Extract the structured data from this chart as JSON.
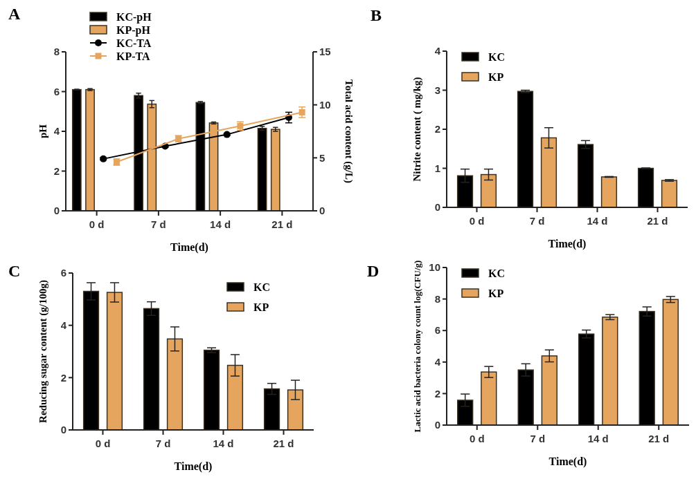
{
  "chart_data": [
    {
      "type": "bar",
      "title": "A",
      "xlabel": "Time(d)",
      "ylabel": "pH",
      "y2label": "Total acid content (g/L)",
      "categories": [
        "0 d",
        "7 d",
        "14 d",
        "21 d"
      ],
      "ylim": [
        0,
        8
      ],
      "yticks": [
        0,
        2,
        4,
        6,
        8
      ],
      "y2lim": [
        0,
        15
      ],
      "y2ticks": [
        0,
        5,
        10,
        15
      ],
      "legend": "top",
      "series": [
        {
          "name": "KC-pH",
          "color": "#000000",
          "values": [
            6.1,
            5.8,
            5.45,
            4.15
          ],
          "errors": [
            0.02,
            0.12,
            0.05,
            0.1
          ]
        },
        {
          "name": "KP-pH",
          "color": "#e6a55e",
          "values": [
            6.1,
            5.37,
            4.42,
            4.1
          ],
          "errors": [
            0.05,
            0.18,
            0.05,
            0.1
          ]
        },
        {
          "name": "KC-TA",
          "type": "line",
          "axis": "y2",
          "marker": "circle",
          "color": "#000000",
          "values": [
            4.9,
            6.1,
            7.2,
            8.8
          ],
          "errors": [
            0.1,
            0.1,
            0.1,
            0.5
          ]
        },
        {
          "name": "KP-TA",
          "type": "line",
          "axis": "y2",
          "marker": "square",
          "color": "#e6a55e",
          "values": [
            4.6,
            6.8,
            8.0,
            9.3
          ],
          "errors": [
            0.3,
            0.3,
            0.4,
            0.5
          ]
        }
      ]
    },
    {
      "type": "bar",
      "title": "B",
      "xlabel": "Time(d)",
      "ylabel": "Nitrite content ( mg/kg)",
      "categories": [
        "0 d",
        "7 d",
        "14 d",
        "21 d"
      ],
      "ylim": [
        0,
        4
      ],
      "yticks": [
        0,
        1,
        2,
        3,
        4
      ],
      "legend": "top left",
      "series": [
        {
          "name": "KC",
          "color": "#000000",
          "values": [
            0.81,
            2.97,
            1.61,
            1.0
          ],
          "errors": [
            0.17,
            0.03,
            0.1,
            0.01
          ]
        },
        {
          "name": "KP",
          "color": "#e6a55e",
          "values": [
            0.84,
            1.78,
            0.78,
            0.69
          ],
          "errors": [
            0.14,
            0.26,
            0.01,
            0.02
          ]
        }
      ]
    },
    {
      "type": "bar",
      "title": "C",
      "xlabel": "Time(d)",
      "ylabel": "Reducing sugar content (g/100g)",
      "categories": [
        "0 d",
        "7 d",
        "14 d",
        "21 d"
      ],
      "ylim": [
        0,
        6
      ],
      "yticks": [
        0,
        2,
        4,
        6
      ],
      "legend": "top right",
      "series": [
        {
          "name": "KC",
          "color": "#000000",
          "values": [
            5.3,
            4.64,
            3.05,
            1.57
          ],
          "errors": [
            0.33,
            0.26,
            0.09,
            0.21
          ]
        },
        {
          "name": "KP",
          "color": "#e6a55e",
          "values": [
            5.26,
            3.48,
            2.47,
            1.53
          ],
          "errors": [
            0.37,
            0.46,
            0.41,
            0.37
          ]
        }
      ]
    },
    {
      "type": "bar",
      "title": "D",
      "xlabel": "Time(d)",
      "ylabel": "Lactic acid bacteria colony count log(CFU/g)",
      "categories": [
        "0 d",
        "7 d",
        "14 d",
        "21 d"
      ],
      "ylim": [
        0,
        10
      ],
      "yticks": [
        0,
        2,
        4,
        6,
        8,
        10
      ],
      "legend": "top left",
      "series": [
        {
          "name": "KC",
          "color": "#000000",
          "values": [
            1.58,
            3.5,
            5.78,
            7.21
          ],
          "errors": [
            0.39,
            0.39,
            0.25,
            0.29
          ]
        },
        {
          "name": "KP",
          "color": "#e6a55e",
          "values": [
            3.37,
            4.39,
            6.85,
            7.97
          ],
          "errors": [
            0.35,
            0.38,
            0.16,
            0.19
          ]
        }
      ]
    }
  ]
}
